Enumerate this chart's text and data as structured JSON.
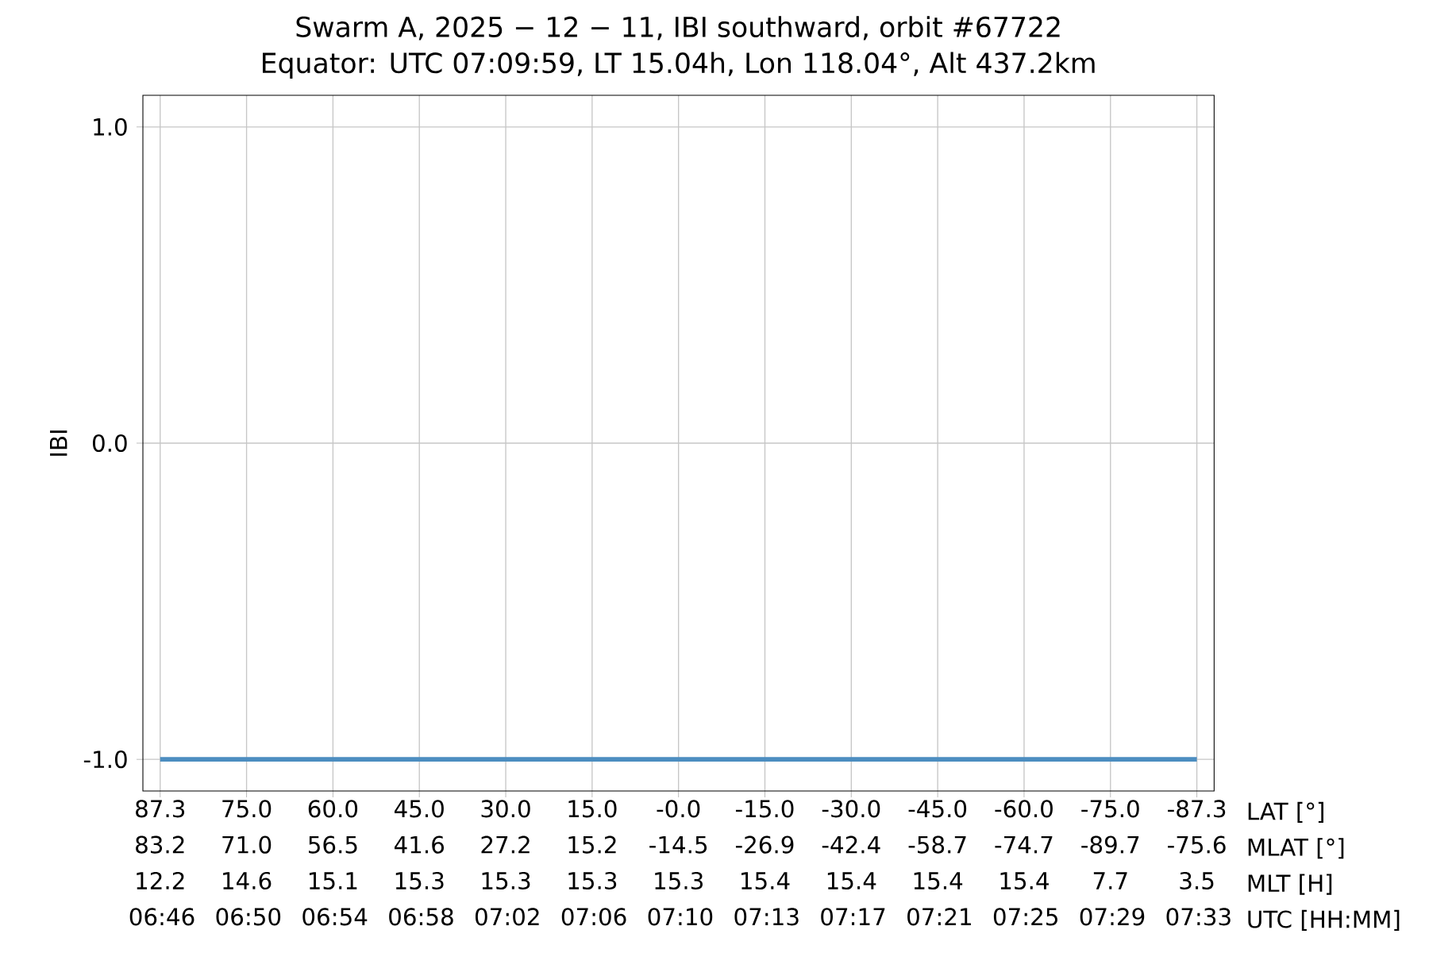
{
  "chart_data": {
    "type": "line",
    "title": "Swarm A, 2025 − 12 − 11, IBI southward, orbit #67722",
    "subtitle": "Equator: UTC 07:09:59, LT 15.04h, Lon 118.04°, Alt 437.2km",
    "ylabel": "IBI",
    "annotations": [
      "LAT [°]",
      "MLAT [°]",
      "MLT [H]",
      "UTC [HH:MM]"
    ],
    "categories": [
      "87.3 83.2 12.2 06:46",
      "75.0 71.0 14.6 06:50",
      "60.0 56.5 15.1 06:54",
      "45.0 41.6 15.3 06:58",
      "30.0 27.2 15.3 07:02",
      "15.0 15.2 15.3 07:06",
      "-0.0 -14.5 15.3 07:10",
      "-15.0 -26.9 15.4 07:13",
      "-30.0 -42.4 15.4 07:17",
      "-45.0 -58.7 15.4 07:21",
      "-60.0 -74.7 15.4 07:25",
      "-75.0 -89.7 7.7 07:29",
      "-87.3 -75.6 3.5 07:33"
    ],
    "values": [
      -1,
      -1,
      -1,
      -1,
      -1,
      -1,
      -1,
      -1,
      -1,
      -1,
      -1,
      -1,
      -1
    ],
    "color": "#4c8dc0",
    "marker": "none",
    "line_style": "solid",
    "grid": true,
    "ylim": [
      -1.1,
      1.1
    ],
    "yticks": [
      {
        "value": -1,
        "label": "-1.0"
      },
      {
        "value": 0,
        "label": "0.0"
      },
      {
        "value": 1,
        "label": "1.0"
      }
    ]
  }
}
